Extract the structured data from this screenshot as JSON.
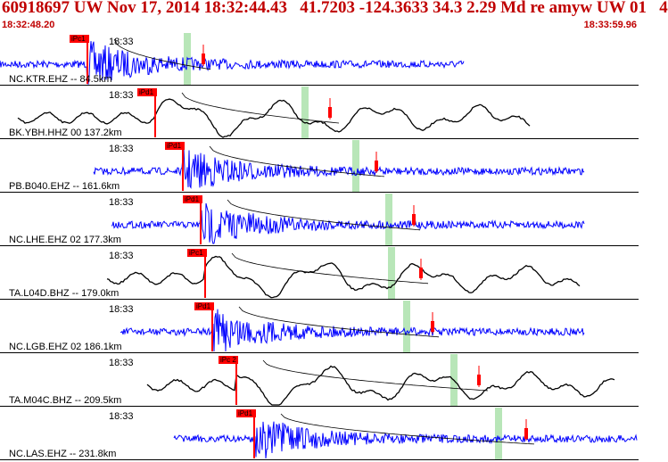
{
  "header": {
    "title": "60918697 UW Nov 17, 2014 18:32:44.43   41.7203 -124.3633 34.3 2.29 Md re amyw UW 01   4",
    "time_start": "18:32:48.20",
    "time_end": "18:33:59.96"
  },
  "colors": {
    "header_text": "#c00000",
    "trace_short_period": "#0000ff",
    "trace_broadband": "#000000",
    "pick_box": "#ff0000",
    "coda_window": "#b8e6b8",
    "amplitude_marker": "#ff0000"
  },
  "traces": [
    {
      "station": "NC.KTR.EHZ -- 84.5km",
      "time_tick": "18:33",
      "pick": "iPc1",
      "kind": "short_period"
    },
    {
      "station": "BK.YBH.HHZ 00 137.2km",
      "time_tick": "18:33",
      "pick": "iPd1",
      "kind": "broadband"
    },
    {
      "station": "PB.B040.EHZ -- 161.6km",
      "time_tick": "18:33",
      "pick": "iPd1",
      "kind": "short_period"
    },
    {
      "station": "NC.LHE.EHZ 02 177.3km",
      "time_tick": "18:33",
      "pick": "iPd1",
      "kind": "short_period"
    },
    {
      "station": "TA.L04D.BHZ -- 179.0km",
      "time_tick": "18:33",
      "pick": "iPc1",
      "kind": "broadband"
    },
    {
      "station": "NC.LGB.EHZ 02 186.1km",
      "time_tick": "18:33",
      "pick": "iPd1",
      "kind": "short_period"
    },
    {
      "station": "TA.M04C.BHZ -- 209.5km",
      "time_tick": "18:33",
      "pick": "iPc 2",
      "kind": "broadband"
    },
    {
      "station": "NC.LAS.EHZ -- 231.8km",
      "time_tick": "18:33",
      "pick": "iPd1",
      "kind": "short_period"
    }
  ]
}
